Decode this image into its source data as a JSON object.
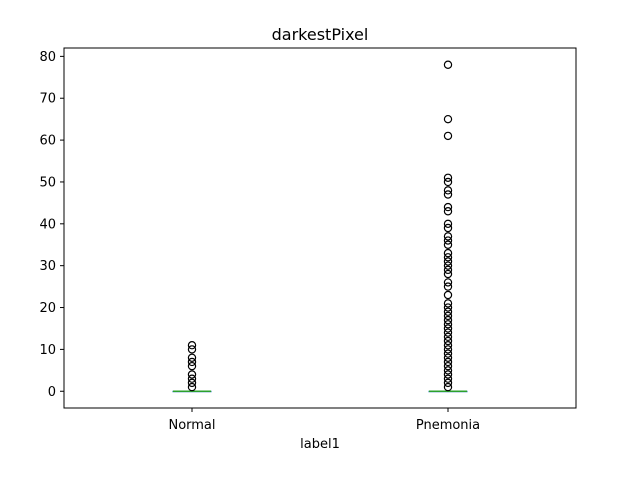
{
  "chart_data": {
    "type": "box",
    "title": "darkestPixel",
    "xlabel": "label1",
    "ylabel": "",
    "ylim": [
      -4,
      82
    ],
    "yticks": [
      0,
      10,
      20,
      30,
      40,
      50,
      60,
      70,
      80
    ],
    "categories": [
      "Normal",
      "Pnemonia"
    ],
    "grid": false,
    "colors": {
      "box": "#1f77b4",
      "median": "#2ca02c",
      "outlier": "#000000",
      "axes": "#000000"
    },
    "series": [
      {
        "category": "Normal",
        "min": 0,
        "q1": 0,
        "median": 0,
        "q3": 0,
        "max": 0,
        "outliers": [
          1,
          2,
          3,
          4,
          6,
          7,
          8,
          10,
          11
        ]
      },
      {
        "category": "Pnemonia",
        "min": 0,
        "q1": 0,
        "median": 0,
        "q3": 0,
        "max": 0,
        "outliers": [
          1,
          2,
          3,
          4,
          5,
          6,
          7,
          8,
          9,
          10,
          11,
          12,
          13,
          14,
          15,
          16,
          17,
          18,
          19,
          20,
          21,
          23,
          25,
          26,
          28,
          29,
          30,
          31,
          32,
          33,
          35,
          36,
          37,
          39,
          40,
          43,
          44,
          47,
          48,
          50,
          51,
          61,
          65,
          78
        ]
      }
    ]
  }
}
